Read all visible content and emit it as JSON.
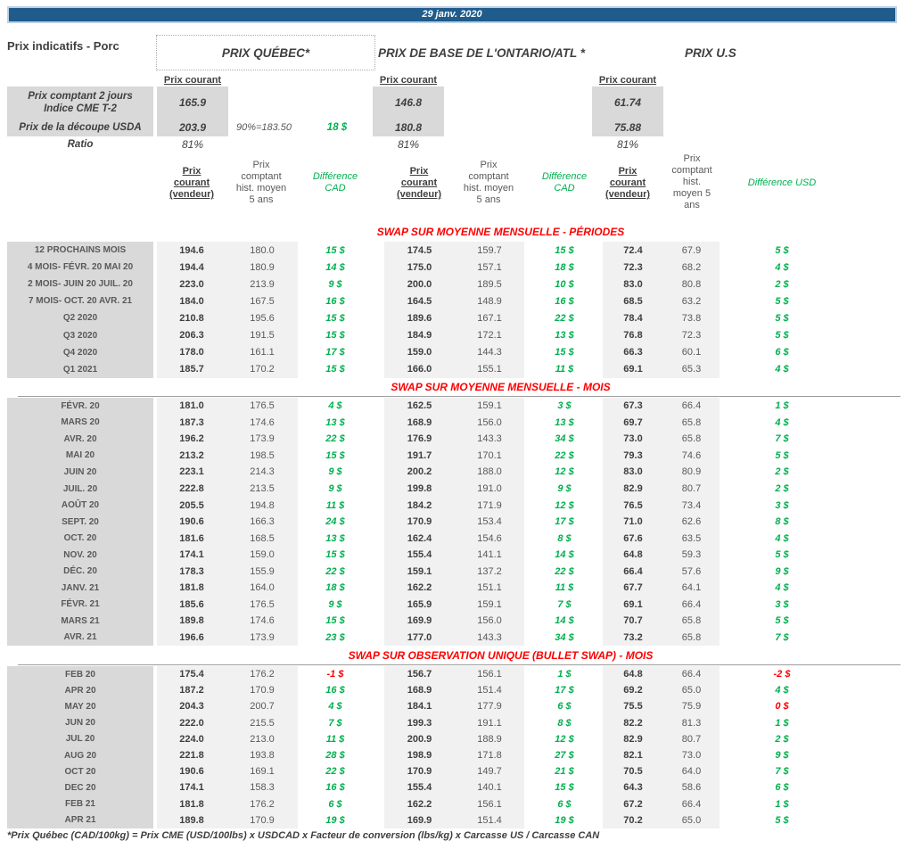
{
  "banner": {
    "date": "29 janv. 2020"
  },
  "page_title": "Prix indicatifs - Porc",
  "groups": {
    "quebec": "PRIX QUÉBEC*",
    "ontario": "PRIX DE BASE DE L'ONTARIO/ATL *",
    "us": "PRIX U.S"
  },
  "prix_courant_label": "Prix courant",
  "spot": {
    "cme_row": {
      "label": "Prix comptant 2 jours\nIndice CME T-2",
      "quebec": "165.9",
      "ontario": "146.8",
      "us": "61.74"
    },
    "usda_row": {
      "label": "Prix de la découpe USDA",
      "quebec": "203.9",
      "note": "90%=183.50",
      "diff_cad": "18 $",
      "ontario": "180.8",
      "us": "75.88"
    },
    "ratio_row": {
      "label": "Ratio",
      "quebec": "81%",
      "ontario": "81%",
      "us": "81%"
    }
  },
  "column_headers": {
    "quebec_courant": "Prix\ncourant\n(vendeur)",
    "quebec_hist": "Prix\ncomptant\nhist. moyen\n5 ans",
    "quebec_diff": "Différence\nCAD",
    "ontario_courant": "Prix\ncourant\n(vendeur)",
    "ontario_hist": "Prix\ncomptant\nhist. moyen\n5 ans",
    "ontario_diff": "Différence\nCAD",
    "us_courant": "Prix\ncourant\n(vendeur)",
    "us_hist": "Prix\ncomptant\nhist.\nmoyen 5\nans",
    "us_diff": "Différence USD"
  },
  "sections": [
    {
      "title": "SWAP SUR MOYENNE MENSUELLE - PÉRIODES",
      "rows": [
        [
          "12 PROCHAINS MOIS",
          "194.6",
          "180.0",
          "15 $",
          "174.5",
          "159.7",
          "15 $",
          "72.4",
          "67.9",
          "5 $"
        ],
        [
          "4 MOIS- FÉVR. 20 MAI 20",
          "194.4",
          "180.9",
          "14 $",
          "175.0",
          "157.1",
          "18 $",
          "72.3",
          "68.2",
          "4 $"
        ],
        [
          "2 MOIS- JUIN 20 JUIL. 20",
          "223.0",
          "213.9",
          "9 $",
          "200.0",
          "189.5",
          "10 $",
          "83.0",
          "80.8",
          "2 $"
        ],
        [
          "7 MOIS- OCT. 20 AVR. 21",
          "184.0",
          "167.5",
          "16 $",
          "164.5",
          "148.9",
          "16 $",
          "68.5",
          "63.2",
          "5 $"
        ],
        [
          "Q2 2020",
          "210.8",
          "195.6",
          "15 $",
          "189.6",
          "167.1",
          "22 $",
          "78.4",
          "73.8",
          "5 $"
        ],
        [
          "Q3 2020",
          "206.3",
          "191.5",
          "15 $",
          "184.9",
          "172.1",
          "13 $",
          "76.8",
          "72.3",
          "5 $"
        ],
        [
          "Q4 2020",
          "178.0",
          "161.1",
          "17 $",
          "159.0",
          "144.3",
          "15 $",
          "66.3",
          "60.1",
          "6 $"
        ],
        [
          "Q1 2021",
          "185.7",
          "170.2",
          "15 $",
          "166.0",
          "155.1",
          "11 $",
          "69.1",
          "65.3",
          "4 $"
        ]
      ]
    },
    {
      "title": "SWAP SUR MOYENNE MENSUELLE - MOIS",
      "rows": [
        [
          "FÉVR. 20",
          "181.0",
          "176.5",
          "4 $",
          "162.5",
          "159.1",
          "3 $",
          "67.3",
          "66.4",
          "1 $"
        ],
        [
          "MARS 20",
          "187.3",
          "174.6",
          "13 $",
          "168.9",
          "156.0",
          "13 $",
          "69.7",
          "65.8",
          "4 $"
        ],
        [
          "AVR. 20",
          "196.2",
          "173.9",
          "22 $",
          "176.9",
          "143.3",
          "34 $",
          "73.0",
          "65.8",
          "7 $"
        ],
        [
          "MAI 20",
          "213.2",
          "198.5",
          "15 $",
          "191.7",
          "170.1",
          "22 $",
          "79.3",
          "74.6",
          "5 $"
        ],
        [
          "JUIN 20",
          "223.1",
          "214.3",
          "9 $",
          "200.2",
          "188.0",
          "12 $",
          "83.0",
          "80.9",
          "2 $"
        ],
        [
          "JUIL. 20",
          "222.8",
          "213.5",
          "9 $",
          "199.8",
          "191.0",
          "9 $",
          "82.9",
          "80.7",
          "2 $"
        ],
        [
          "AOÛT 20",
          "205.5",
          "194.8",
          "11 $",
          "184.2",
          "171.9",
          "12 $",
          "76.5",
          "73.4",
          "3 $"
        ],
        [
          "SEPT. 20",
          "190.6",
          "166.3",
          "24 $",
          "170.9",
          "153.4",
          "17 $",
          "71.0",
          "62.6",
          "8 $"
        ],
        [
          "OCT. 20",
          "181.6",
          "168.5",
          "13 $",
          "162.4",
          "154.6",
          "8 $",
          "67.6",
          "63.5",
          "4 $"
        ],
        [
          "NOV. 20",
          "174.1",
          "159.0",
          "15 $",
          "155.4",
          "141.1",
          "14 $",
          "64.8",
          "59.3",
          "5 $"
        ],
        [
          "DÉC. 20",
          "178.3",
          "155.9",
          "22 $",
          "159.1",
          "137.2",
          "22 $",
          "66.4",
          "57.6",
          "9 $"
        ],
        [
          "JANV. 21",
          "181.8",
          "164.0",
          "18 $",
          "162.2",
          "151.1",
          "11 $",
          "67.7",
          "64.1",
          "4 $"
        ],
        [
          "FÉVR. 21",
          "185.6",
          "176.5",
          "9 $",
          "165.9",
          "159.1",
          "7 $",
          "69.1",
          "66.4",
          "3 $"
        ],
        [
          "MARS 21",
          "189.8",
          "174.6",
          "15 $",
          "169.9",
          "156.0",
          "14 $",
          "70.7",
          "65.8",
          "5 $"
        ],
        [
          "AVR. 21",
          "196.6",
          "173.9",
          "23 $",
          "177.0",
          "143.3",
          "34 $",
          "73.2",
          "65.8",
          "7 $"
        ]
      ]
    },
    {
      "title": "SWAP SUR OBSERVATION UNIQUE (BULLET SWAP) - MOIS",
      "rows": [
        [
          "FEB 20",
          "175.4",
          "176.2",
          "-1 $",
          "156.7",
          "156.1",
          "1 $",
          "64.8",
          "66.4",
          "-2 $"
        ],
        [
          "APR 20",
          "187.2",
          "170.9",
          "16 $",
          "168.9",
          "151.4",
          "17 $",
          "69.2",
          "65.0",
          "4 $"
        ],
        [
          "MAY 20",
          "204.3",
          "200.7",
          "4 $",
          "184.1",
          "177.9",
          "6 $",
          "75.5",
          "75.9",
          "0 $"
        ],
        [
          "JUN 20",
          "222.0",
          "215.5",
          "7 $",
          "199.3",
          "191.1",
          "8 $",
          "82.2",
          "81.3",
          "1 $"
        ],
        [
          "JUL 20",
          "224.0",
          "213.0",
          "11 $",
          "200.9",
          "188.9",
          "12 $",
          "82.9",
          "80.7",
          "2 $"
        ],
        [
          "AUG 20",
          "221.8",
          "193.8",
          "28 $",
          "198.9",
          "171.8",
          "27 $",
          "82.1",
          "73.0",
          "9 $"
        ],
        [
          "OCT 20",
          "190.6",
          "169.1",
          "22 $",
          "170.9",
          "149.7",
          "21 $",
          "70.5",
          "64.0",
          "7 $"
        ],
        [
          "DEC 20",
          "174.1",
          "158.3",
          "16 $",
          "155.4",
          "140.1",
          "15 $",
          "64.3",
          "58.6",
          "6 $"
        ],
        [
          "FEB 21",
          "181.8",
          "176.2",
          "6 $",
          "162.2",
          "156.1",
          "6 $",
          "67.2",
          "66.4",
          "1 $"
        ],
        [
          "APR 21",
          "189.8",
          "170.9",
          "19 $",
          "169.9",
          "151.4",
          "19 $",
          "70.2",
          "65.0",
          "5 $"
        ]
      ]
    }
  ],
  "footnote": "*Prix Québec (CAD/100kg) = Prix CME (USD/100lbs) x USDCAD x Facteur de conversion (lbs/kg) x Carcasse US / Carcasse CAN"
}
